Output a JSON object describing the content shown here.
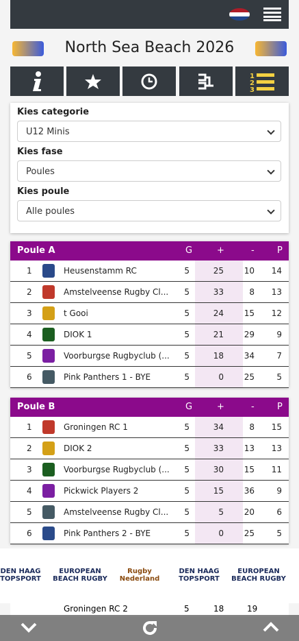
{
  "header": {
    "title": "North Sea Beach 2026"
  },
  "filters": [
    {
      "label": "Kies categorie",
      "selected": "U12 Minis"
    },
    {
      "label": "Kies fase",
      "selected": "Poules"
    },
    {
      "label": "Kies poule",
      "selected": "Alle poules"
    }
  ],
  "columns": [
    "G",
    "+",
    "-",
    "P"
  ],
  "poules": [
    {
      "name": "Poule A",
      "rows": [
        [
          1,
          "Heusenstamm RC",
          5,
          25,
          10,
          14
        ],
        [
          2,
          "Amstelveense Rugby Cl...",
          5,
          33,
          8,
          13
        ],
        [
          3,
          "t Gooi",
          5,
          24,
          15,
          12
        ],
        [
          4,
          "DIOK 1",
          5,
          21,
          29,
          9
        ],
        [
          5,
          "Voorburgse Rugbyclub (...",
          5,
          18,
          34,
          7
        ],
        [
          6,
          "Pink Panthers 1 - BYE",
          5,
          0,
          25,
          5
        ]
      ]
    },
    {
      "name": "Poule B",
      "rows": [
        [
          1,
          "Groningen RC 1",
          5,
          34,
          8,
          15
        ],
        [
          2,
          "DIOK 2",
          5,
          33,
          13,
          13
        ],
        [
          3,
          "Voorburgse Rugbyclub (...",
          5,
          30,
          15,
          11
        ],
        [
          4,
          "Pickwick Players 2",
          5,
          15,
          36,
          9
        ],
        [
          5,
          "Amstelveense Rugby Cl...",
          5,
          5,
          20,
          6
        ],
        [
          6,
          "Pink Panthers 2 - BYE",
          5,
          0,
          25,
          5
        ]
      ]
    }
  ],
  "partial_row": {
    "team": "Groningen RC 2",
    "g": 5,
    "plus": 18,
    "minus": 19
  },
  "sponsors": [
    "DEN HAAG TOPSPORT",
    "EUROPEAN BEACH RUGBY",
    "Rugby Nederland",
    "DEN HAAG TOPSPORT",
    "EUROPEAN BEACH RUGBY"
  ]
}
